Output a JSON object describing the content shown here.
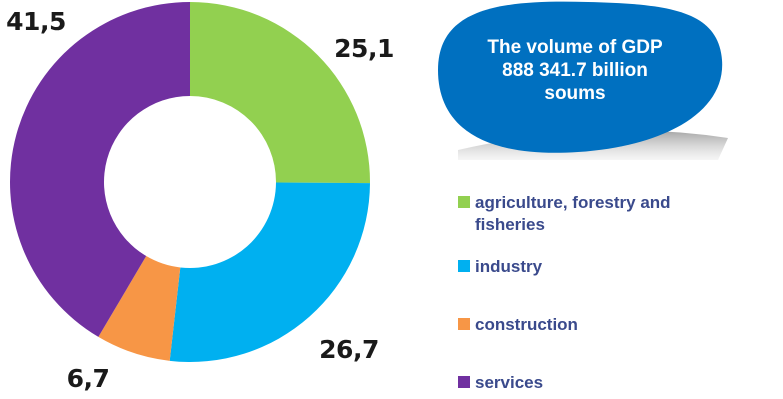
{
  "callout": {
    "text": "The volume of GDP 888 341.7 billion soums",
    "color": "#0070c0"
  },
  "chart_data": {
    "type": "pie",
    "variant": "donut",
    "title": "",
    "categories": [
      "agriculture, forestry and fisheries",
      "industry",
      "construction",
      "services"
    ],
    "values": [
      25.1,
      26.7,
      6.7,
      41.5
    ],
    "value_labels": [
      "25,1",
      "26,7",
      "6,7",
      "41,5"
    ],
    "colors": [
      "#92d050",
      "#00b0f0",
      "#f79646",
      "#7030a0"
    ],
    "legend_position": "right"
  }
}
